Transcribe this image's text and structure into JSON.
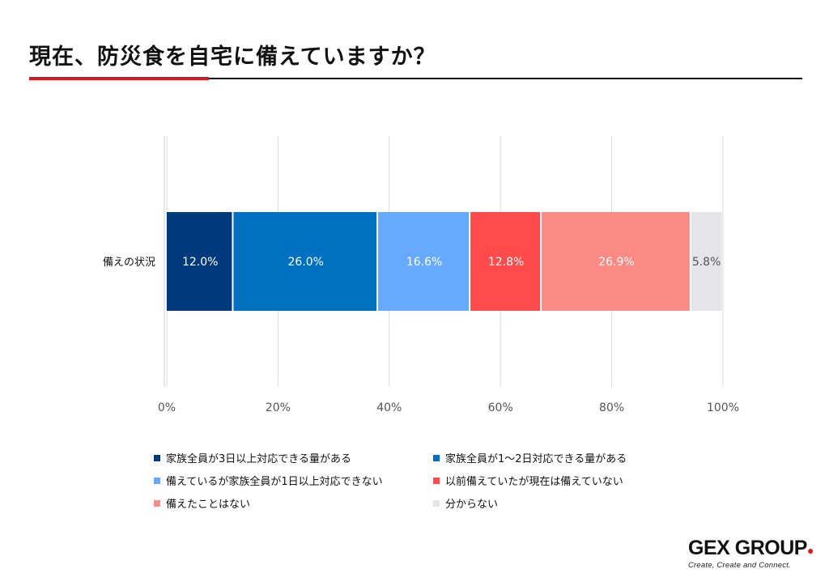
{
  "title": "現在、防災食を自宅に備えていますか？",
  "colors": {
    "accent": "#e0161e",
    "series": [
      "#003a7d",
      "#0070c0",
      "#66aaff",
      "#ff4b4b",
      "#fc8a84",
      "#e5e5e8"
    ]
  },
  "chart_data": {
    "type": "bar",
    "orientation": "horizontal",
    "stacked": true,
    "categories": [
      "備えの状況"
    ],
    "series": [
      {
        "name": "家族全員が3日以上対応できる量がある",
        "values": [
          12.0
        ],
        "label": "12.0%"
      },
      {
        "name": "家族全員が1～2日対応できる量がある",
        "values": [
          26.0
        ],
        "label": "26.0%"
      },
      {
        "name": "備えているが家族全員が1日以上対応できない",
        "values": [
          16.6
        ],
        "label": "16.6%"
      },
      {
        "name": "以前備えていたが現在は備えていない",
        "values": [
          12.8
        ],
        "label": "12.8%"
      },
      {
        "name": "備えたことはない",
        "values": [
          26.9
        ],
        "label": "26.9%"
      },
      {
        "name": "分からない",
        "values": [
          5.8
        ],
        "label": "5.8%"
      }
    ],
    "xlim": [
      0,
      100
    ],
    "xticks": [
      0,
      20,
      40,
      60,
      80,
      100
    ],
    "xtick_labels": [
      "0%",
      "20%",
      "40%",
      "60%",
      "80%",
      "100%"
    ],
    "grid": true,
    "legend_position": "bottom"
  },
  "logo": {
    "text_left": "GEX",
    "text_right": "GROUP",
    "tagline": "Create, Create and Connect."
  }
}
